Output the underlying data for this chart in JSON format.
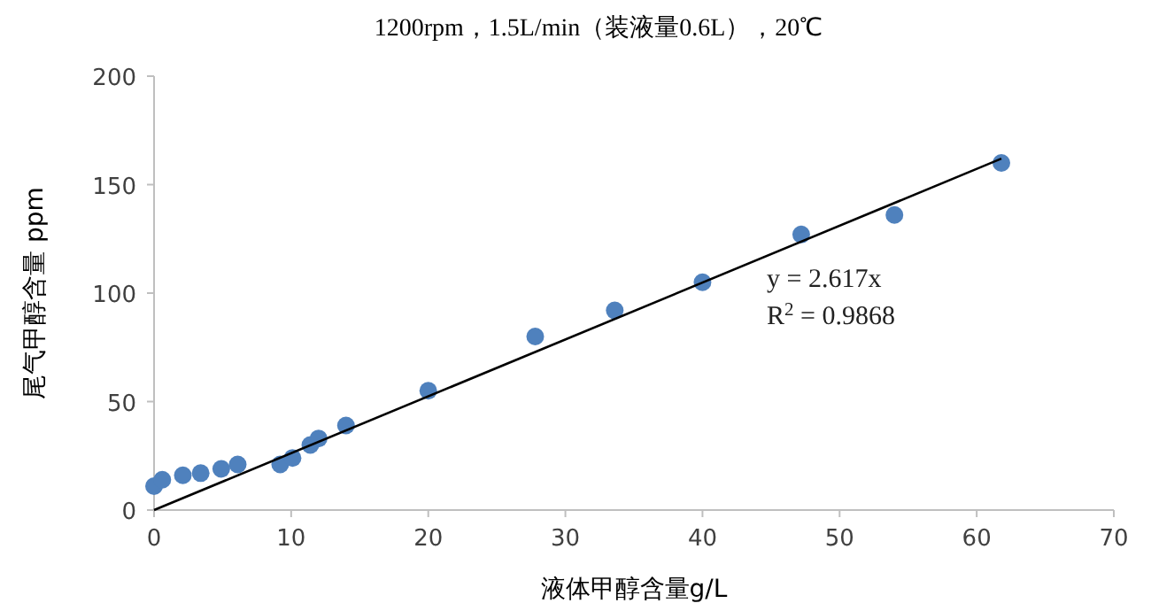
{
  "chart_data": {
    "type": "scatter",
    "title": "1200rpm，1.5L/min（装液量0.6L），20℃",
    "xlabel": "液体甲醇含量g/L",
    "ylabel": "尾气甲醇含量 ppm",
    "xlim": [
      0,
      70
    ],
    "xticks": [
      0,
      10,
      20,
      30,
      40,
      50,
      60,
      70
    ],
    "ylim": [
      0,
      200
    ],
    "yticks": [
      0,
      50,
      100,
      150,
      200
    ],
    "grid": false,
    "marker": "circle",
    "annotations": [
      "y = 2.617x",
      "R$^{2}$ = 0.9868"
    ],
    "series": [
      {
        "color": "#4f81bd",
        "x": [
          0,
          0.6,
          2.1,
          3.4,
          4.9,
          6.1,
          9.2,
          10.1,
          11.4,
          12,
          14,
          20,
          27.8,
          33.6,
          40,
          47.2,
          54,
          61.8
        ],
        "values": [
          11,
          14,
          16,
          17,
          19,
          21,
          21,
          24,
          30,
          33,
          39,
          55,
          80,
          92,
          105,
          127,
          136,
          160
        ]
      },
      {
        "type": "line",
        "color": "#000000",
        "line_style": "solid",
        "marker": "none",
        "x": [
          0,
          61.8
        ],
        "values": [
          0,
          162
        ]
      }
    ]
  }
}
